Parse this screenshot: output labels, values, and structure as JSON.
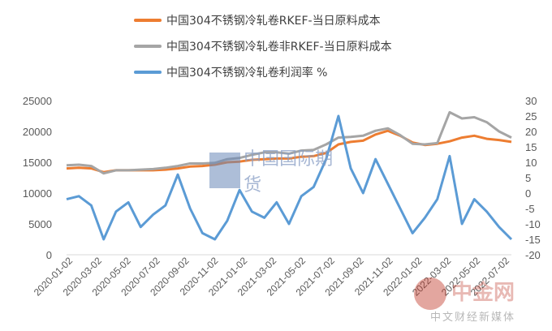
{
  "chart_data": {
    "type": "line",
    "title": "",
    "legend": [
      {
        "name": "中国304不锈钢冷轧卷RKEF-当日原料成本",
        "color": "#ED7D31",
        "axis": "left"
      },
      {
        "name": "中国304不锈钢冷轧卷非RKEF-当日原料成本",
        "color": "#A5A5A5",
        "axis": "left"
      },
      {
        "name": "中国304不锈钢冷轧卷利润率 %",
        "color": "#5B9BD5",
        "axis": "right"
      }
    ],
    "legend_position": "top",
    "x_tick_labels": [
      "2020-01-02",
      "2020-03-02",
      "2020-05-02",
      "2020-07-02",
      "2020-09-02",
      "2020-11-02",
      "2021-01-02",
      "2021-03-02",
      "2021-05-02",
      "2021-07-02",
      "2021-09-02",
      "2021-11-02",
      "2022-01-02",
      "2022-03-02",
      "2022-05-02",
      "2022-07-02"
    ],
    "y_left": {
      "ticks": [
        0,
        5000,
        10000,
        15000,
        20000,
        25000
      ],
      "range": [
        0,
        25000
      ]
    },
    "y_right": {
      "ticks": [
        -20,
        -15,
        -10,
        -5,
        0,
        5,
        10,
        15,
        20,
        25,
        30
      ],
      "range": [
        -20,
        30
      ]
    },
    "grid": false,
    "series": [
      {
        "name": "中国304不锈钢冷轧卷RKEF-当日原料成本",
        "x": [
          0,
          1,
          2,
          3,
          4,
          5,
          6,
          7,
          8,
          9,
          10,
          11,
          12,
          13,
          14,
          15,
          16,
          17,
          18,
          19,
          20,
          21,
          22,
          23,
          24,
          25,
          26,
          27,
          28,
          29,
          30,
          31,
          32,
          33,
          34,
          35,
          36
        ],
        "values": [
          14000,
          14100,
          14000,
          13400,
          13700,
          13700,
          13700,
          13700,
          13800,
          14000,
          14300,
          14400,
          14600,
          15000,
          15100,
          15400,
          15500,
          15600,
          15600,
          15900,
          16000,
          16500,
          17900,
          18300,
          18500,
          19500,
          20100,
          19300,
          18200,
          17800,
          18000,
          18400,
          19000,
          19300,
          18800,
          18600,
          18300
        ]
      },
      {
        "name": "中国304不锈钢冷轧卷非RKEF-当日原料成本",
        "x": [
          0,
          1,
          2,
          3,
          4,
          5,
          6,
          7,
          8,
          9,
          10,
          11,
          12,
          13,
          14,
          15,
          16,
          17,
          18,
          19,
          20,
          21,
          22,
          23,
          24,
          25,
          26,
          27,
          28,
          29,
          30,
          31,
          32,
          33,
          34,
          35,
          36
        ],
        "values": [
          14500,
          14600,
          14400,
          13200,
          13700,
          13700,
          13800,
          13900,
          14100,
          14400,
          14800,
          14800,
          14900,
          15500,
          15700,
          16200,
          16600,
          16600,
          16400,
          16900,
          17000,
          17900,
          19000,
          19100,
          19300,
          20100,
          20500,
          19400,
          18000,
          17900,
          18100,
          23100,
          22100,
          22300,
          21500,
          20000,
          19000
        ]
      },
      {
        "name": "中国304不锈钢冷轧卷利润率 %",
        "x": [
          0,
          1,
          2,
          3,
          4,
          5,
          6,
          7,
          8,
          9,
          10,
          11,
          12,
          13,
          14,
          15,
          16,
          17,
          18,
          19,
          20,
          21,
          22,
          23,
          24,
          25,
          26,
          27,
          28,
          29,
          30,
          31,
          32,
          33,
          34,
          35,
          36
        ],
        "values": [
          -2,
          -1,
          -4,
          -15,
          -6,
          -3,
          -11,
          -7,
          -4,
          6,
          -5,
          -13,
          -15,
          -9,
          1,
          -6,
          -8,
          -3,
          -10,
          -1,
          2,
          11,
          25,
          8,
          0,
          11,
          3,
          -5,
          -13,
          -8,
          -2,
          12,
          -10,
          -2,
          -6,
          -11,
          -15
        ]
      }
    ]
  },
  "watermarks": {
    "center": "中国国际期货",
    "corner": "中金网",
    "corner_sub": "中文财经新媒体"
  }
}
